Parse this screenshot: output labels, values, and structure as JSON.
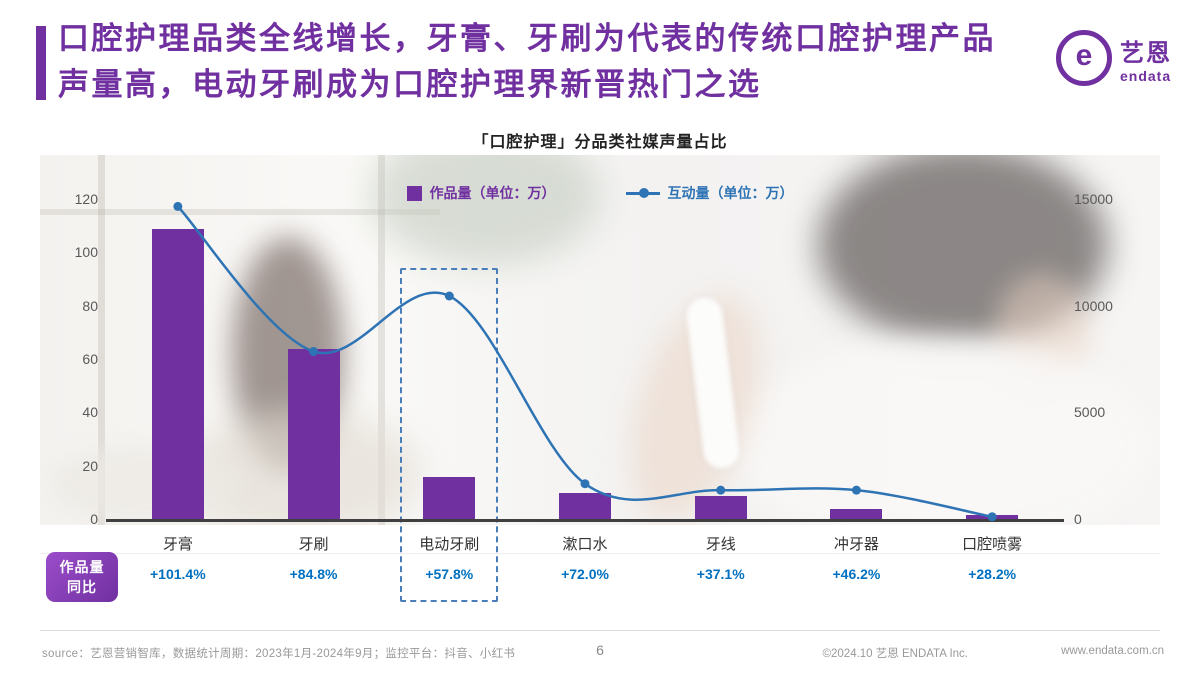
{
  "colors": {
    "accent": "#7030A0",
    "line": "#2E74B5",
    "pct": "#0070C0"
  },
  "header": {
    "title_line1": "口腔护理品类全线增长，牙膏、牙刷为代表的传统口腔护理产品",
    "title_line2": "声量高，电动牙刷成为口腔护理界新晋热门之选",
    "logo_cn": "艺恩",
    "logo_en": "endata"
  },
  "chart_data": {
    "type": "bar+line",
    "title": "「口腔护理」分品类社媒声量占比",
    "categories": [
      "牙膏",
      "牙刷",
      "电动牙刷",
      "漱口水",
      "牙线",
      "冲牙器",
      "口腔喷雾"
    ],
    "series": [
      {
        "name": "作品量（单位：万）",
        "type": "bar",
        "axis": "left",
        "values": [
          109,
          64,
          16,
          10,
          9,
          4,
          2
        ]
      },
      {
        "name": "互动量（单位：万）",
        "type": "line",
        "axis": "right",
        "values": [
          14700,
          7900,
          10500,
          1700,
          1400,
          1400,
          150
        ]
      }
    ],
    "yoy": [
      "+101.4%",
      "+84.8%",
      "+57.8%",
      "+72.0%",
      "+37.1%",
      "+46.2%",
      "+28.2%"
    ],
    "left_axis": {
      "min": 0,
      "max": 120,
      "step": 20
    },
    "right_axis": {
      "min": 0,
      "max": 15000,
      "step": 5000
    },
    "highlight_category": "电动牙刷",
    "legend_position": "top",
    "grid": false
  },
  "yoy_badge": {
    "line1": "作品量",
    "line2": "同比"
  },
  "footer": {
    "source": "source：艺恩营销智库，数据统计周期：2023年1月-2024年9月；监控平台：抖音、小红书",
    "page": "6",
    "copyright": "©2024.10 艺恩 ENDATA Inc.",
    "website": "www.endata.com.cn"
  }
}
